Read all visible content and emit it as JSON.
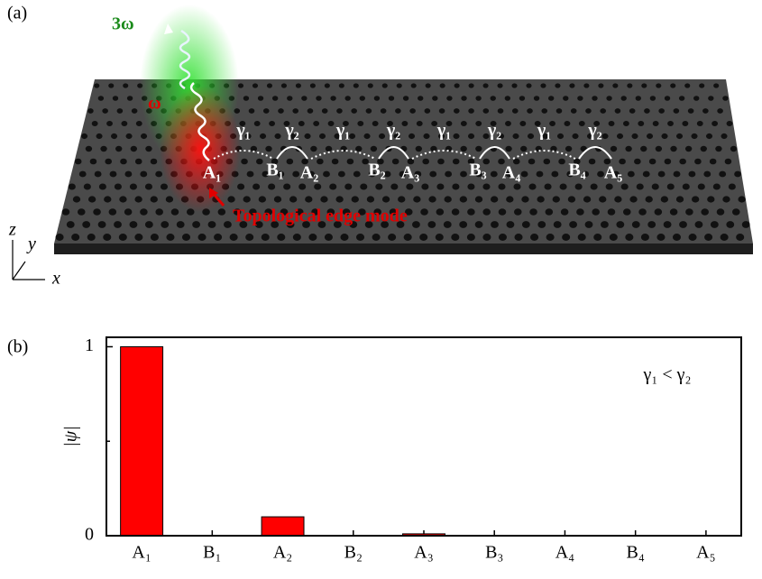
{
  "panel_a": {
    "label": "(a)",
    "harmonic": "3ω",
    "fundamental": "ω",
    "sites": [
      "A₁",
      "B₁",
      "A₂",
      "B₂",
      "A₃",
      "B₃",
      "A₄",
      "B₄",
      "A₅"
    ],
    "couplings": [
      "γ₁",
      "γ₂",
      "γ₁",
      "γ₂",
      "γ₁",
      "γ₂",
      "γ₁",
      "γ₂"
    ],
    "edge_mode": "Topological edge mode",
    "axes": [
      "z",
      "y",
      "x"
    ]
  },
  "chart_data": {
    "type": "bar",
    "panel_label": "(b)",
    "ylabel": "|ψ|",
    "annotation": "γ₁ < γ₂",
    "categories": [
      "A₁",
      "B₁",
      "A₂",
      "B₂",
      "A₃",
      "B₃",
      "A₄",
      "B₄",
      "A₅"
    ],
    "values": [
      1,
      0,
      0.1,
      0,
      0.01,
      0,
      0,
      0,
      0
    ],
    "color": "#ff0000",
    "ylim": [
      0,
      1.05
    ],
    "yticks": [
      0,
      1
    ],
    "minor_yticks": [
      0.5
    ]
  }
}
